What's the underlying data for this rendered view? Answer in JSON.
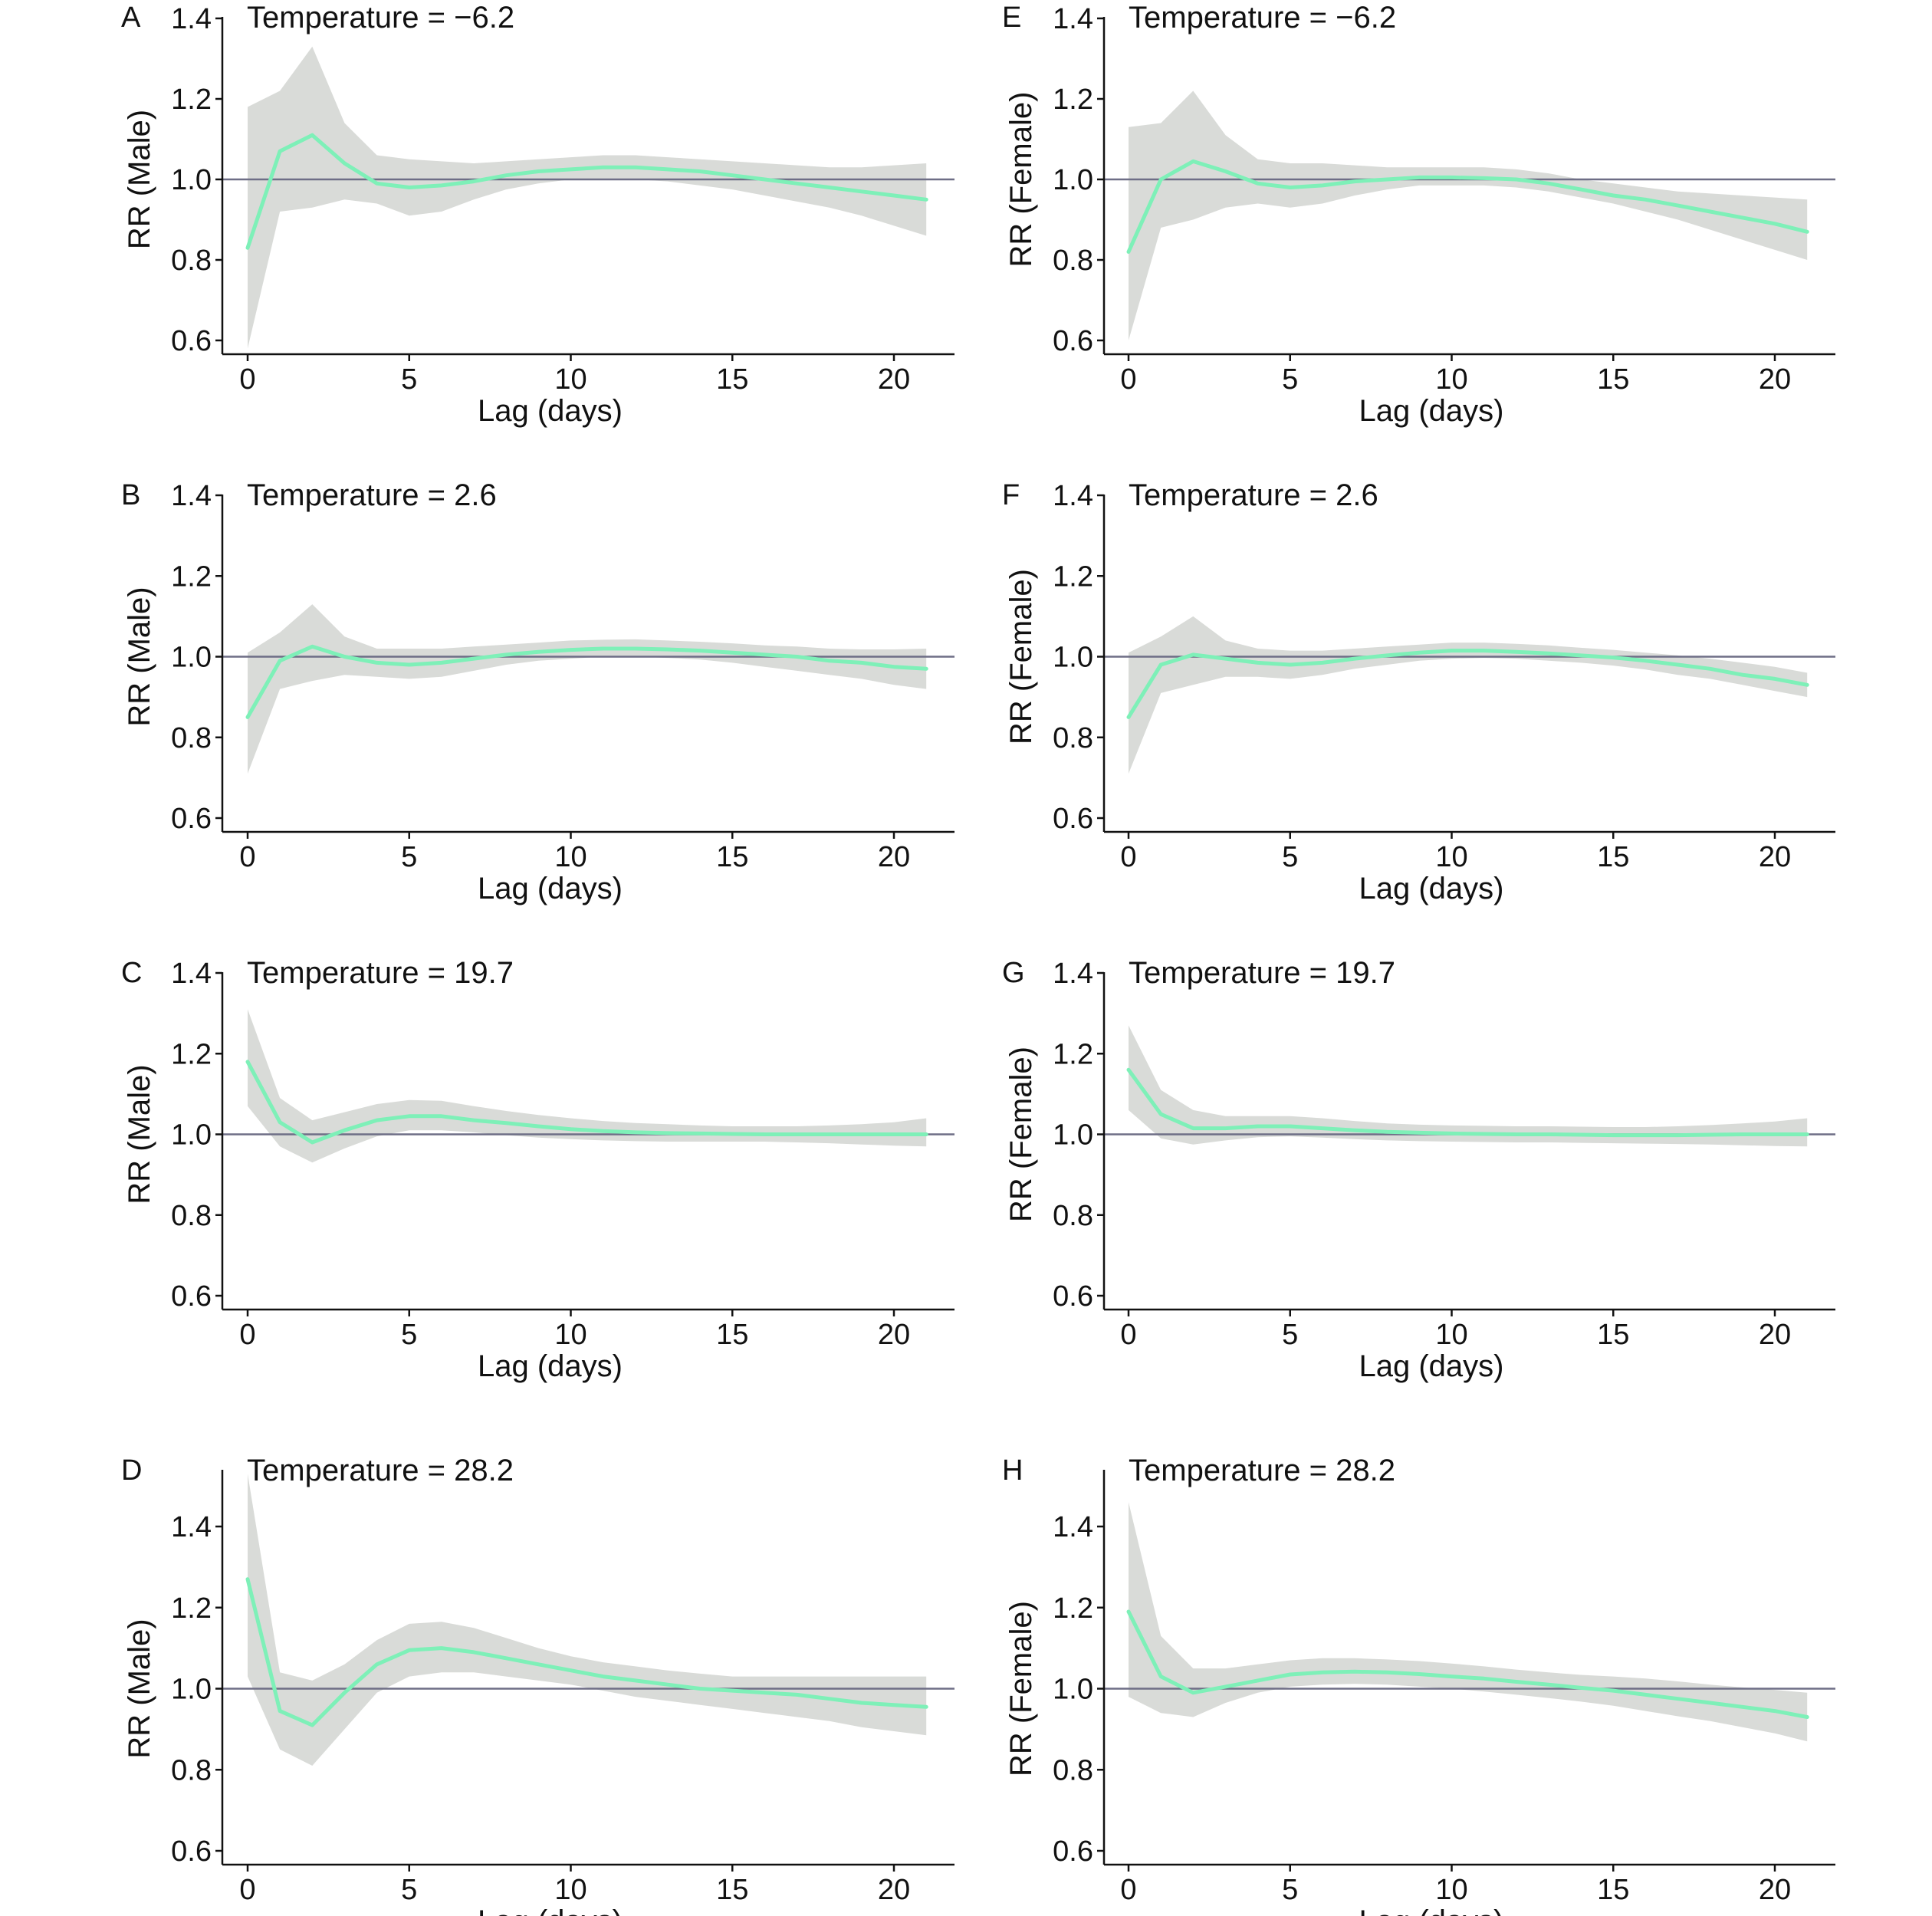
{
  "colors": {
    "line": "#7ef0b8",
    "band": "#d9dbd8",
    "reference": "#6e6e86",
    "axis": "#111111"
  },
  "chart_data": [
    {
      "type": "line",
      "panel": "A",
      "annotation": "Temperature = −6.2",
      "xlabel": "Lag (days)",
      "ylabel": "RR (Male)",
      "xlim": [
        0,
        21
      ],
      "ylim": [
        0.6,
        1.4
      ],
      "xticks": [
        "0",
        "5",
        "10",
        "15",
        "20"
      ],
      "yticks": [
        "0.6",
        "0.8",
        "1.0",
        "1.2",
        "1.4"
      ],
      "reference": 1.0,
      "x": [
        0,
        1,
        2,
        3,
        4,
        5,
        6,
        7,
        8,
        9,
        10,
        11,
        12,
        13,
        14,
        15,
        16,
        17,
        18,
        19,
        20,
        21
      ],
      "y": [
        0.83,
        1.07,
        1.11,
        1.04,
        0.99,
        0.98,
        0.985,
        0.995,
        1.01,
        1.02,
        1.025,
        1.03,
        1.03,
        1.025,
        1.02,
        1.01,
        1.0,
        0.99,
        0.98,
        0.97,
        0.96,
        0.95
      ],
      "lower": [
        0.58,
        0.92,
        0.93,
        0.95,
        0.94,
        0.91,
        0.92,
        0.95,
        0.975,
        0.99,
        1.0,
        1.0,
        1.0,
        0.995,
        0.985,
        0.975,
        0.96,
        0.945,
        0.93,
        0.91,
        0.885,
        0.86
      ],
      "upper": [
        1.18,
        1.22,
        1.33,
        1.14,
        1.06,
        1.05,
        1.045,
        1.04,
        1.045,
        1.05,
        1.055,
        1.06,
        1.06,
        1.055,
        1.05,
        1.045,
        1.04,
        1.035,
        1.03,
        1.03,
        1.035,
        1.04
      ]
    },
    {
      "type": "line",
      "panel": "B",
      "annotation": "Temperature = 2.6",
      "xlabel": "Lag (days)",
      "ylabel": "RR (Male)",
      "xlim": [
        0,
        21
      ],
      "ylim": [
        0.6,
        1.4
      ],
      "xticks": [
        "0",
        "5",
        "10",
        "15",
        "20"
      ],
      "yticks": [
        "0.6",
        "0.8",
        "1.0",
        "1.2",
        "1.4"
      ],
      "reference": 1.0,
      "x": [
        0,
        1,
        2,
        3,
        4,
        5,
        6,
        7,
        8,
        9,
        10,
        11,
        12,
        13,
        14,
        15,
        16,
        17,
        18,
        19,
        20,
        21
      ],
      "y": [
        0.85,
        0.99,
        1.025,
        1.0,
        0.985,
        0.98,
        0.985,
        0.995,
        1.005,
        1.012,
        1.017,
        1.02,
        1.02,
        1.018,
        1.015,
        1.01,
        1.005,
        1.0,
        0.99,
        0.985,
        0.975,
        0.97
      ],
      "lower": [
        0.71,
        0.92,
        0.94,
        0.955,
        0.95,
        0.945,
        0.95,
        0.965,
        0.98,
        0.99,
        0.995,
        1.0,
        1.0,
        0.997,
        0.993,
        0.985,
        0.975,
        0.965,
        0.955,
        0.945,
        0.93,
        0.92
      ],
      "upper": [
        1.01,
        1.06,
        1.13,
        1.05,
        1.02,
        1.02,
        1.02,
        1.025,
        1.03,
        1.035,
        1.04,
        1.042,
        1.043,
        1.04,
        1.037,
        1.033,
        1.028,
        1.025,
        1.02,
        1.018,
        1.018,
        1.02
      ]
    },
    {
      "type": "line",
      "panel": "C",
      "annotation": "Temperature = 19.7",
      "xlabel": "Lag (days)",
      "ylabel": "RR (Male)",
      "xlim": [
        0,
        21
      ],
      "ylim": [
        0.6,
        1.4
      ],
      "xticks": [
        "0",
        "5",
        "10",
        "15",
        "20"
      ],
      "yticks": [
        "0.6",
        "0.8",
        "1.0",
        "1.2",
        "1.4"
      ],
      "reference": 1.0,
      "x": [
        0,
        1,
        2,
        3,
        4,
        5,
        6,
        7,
        8,
        9,
        10,
        11,
        12,
        13,
        14,
        15,
        16,
        17,
        18,
        19,
        20,
        21
      ],
      "y": [
        1.18,
        1.03,
        0.98,
        1.01,
        1.035,
        1.045,
        1.045,
        1.035,
        1.028,
        1.02,
        1.013,
        1.008,
        1.005,
        1.003,
        1.002,
        1.001,
        1.0,
        1.0,
        1.0,
        1.0,
        1.0,
        1.0
      ],
      "lower": [
        1.07,
        0.97,
        0.93,
        0.965,
        0.995,
        1.01,
        1.01,
        1.005,
        0.998,
        0.992,
        0.988,
        0.985,
        0.983,
        0.982,
        0.982,
        0.982,
        0.982,
        0.98,
        0.978,
        0.975,
        0.972,
        0.97
      ],
      "upper": [
        1.31,
        1.09,
        1.035,
        1.055,
        1.075,
        1.085,
        1.083,
        1.07,
        1.058,
        1.048,
        1.04,
        1.033,
        1.028,
        1.025,
        1.022,
        1.02,
        1.02,
        1.02,
        1.022,
        1.025,
        1.03,
        1.04
      ]
    },
    {
      "type": "line",
      "panel": "D",
      "annotation": "Temperature = 28.2",
      "xlabel": "Lag (days)",
      "ylabel": "RR (Male)",
      "xlim": [
        0,
        21
      ],
      "ylim": [
        0.6,
        1.5
      ],
      "xticks": [
        "0",
        "5",
        "10",
        "15",
        "20"
      ],
      "yticks": [
        "0.6",
        "0.8",
        "1.0",
        "1.2",
        "1.4"
      ],
      "reference": 1.0,
      "x": [
        0,
        1,
        2,
        3,
        4,
        5,
        6,
        7,
        8,
        9,
        10,
        11,
        12,
        13,
        14,
        15,
        16,
        17,
        18,
        19,
        20,
        21
      ],
      "y": [
        1.27,
        0.945,
        0.91,
        0.99,
        1.06,
        1.095,
        1.1,
        1.09,
        1.075,
        1.06,
        1.045,
        1.03,
        1.02,
        1.01,
        1.0,
        0.995,
        0.99,
        0.985,
        0.975,
        0.965,
        0.96,
        0.955
      ],
      "lower": [
        1.03,
        0.85,
        0.81,
        0.9,
        0.99,
        1.03,
        1.04,
        1.04,
        1.03,
        1.02,
        1.01,
        0.995,
        0.98,
        0.97,
        0.96,
        0.95,
        0.94,
        0.93,
        0.92,
        0.905,
        0.895,
        0.885
      ],
      "upper": [
        1.53,
        1.04,
        1.02,
        1.06,
        1.12,
        1.16,
        1.165,
        1.15,
        1.125,
        1.1,
        1.08,
        1.065,
        1.055,
        1.045,
        1.037,
        1.03,
        1.03,
        1.03,
        1.03,
        1.03,
        1.03,
        1.03
      ]
    },
    {
      "type": "line",
      "panel": "E",
      "annotation": "Temperature = −6.2",
      "xlabel": "Lag (days)",
      "ylabel": "RR (Female)",
      "xlim": [
        0,
        21
      ],
      "ylim": [
        0.6,
        1.4
      ],
      "xticks": [
        "0",
        "5",
        "10",
        "15",
        "20"
      ],
      "yticks": [
        "0.6",
        "0.8",
        "1.0",
        "1.2",
        "1.4"
      ],
      "reference": 1.0,
      "x": [
        0,
        1,
        2,
        3,
        4,
        5,
        6,
        7,
        8,
        9,
        10,
        11,
        12,
        13,
        14,
        15,
        16,
        17,
        18,
        19,
        20,
        21
      ],
      "y": [
        0.82,
        1.0,
        1.045,
        1.02,
        0.99,
        0.98,
        0.985,
        0.995,
        1.0,
        1.005,
        1.005,
        1.003,
        1.0,
        0.99,
        0.975,
        0.96,
        0.95,
        0.935,
        0.92,
        0.905,
        0.89,
        0.87
      ],
      "lower": [
        0.6,
        0.88,
        0.9,
        0.93,
        0.94,
        0.93,
        0.94,
        0.96,
        0.975,
        0.985,
        0.985,
        0.985,
        0.98,
        0.97,
        0.955,
        0.94,
        0.92,
        0.9,
        0.875,
        0.85,
        0.825,
        0.8
      ],
      "upper": [
        1.13,
        1.14,
        1.22,
        1.11,
        1.05,
        1.04,
        1.04,
        1.035,
        1.03,
        1.03,
        1.03,
        1.03,
        1.025,
        1.015,
        1.0,
        0.99,
        0.98,
        0.97,
        0.965,
        0.96,
        0.955,
        0.95
      ]
    },
    {
      "type": "line",
      "panel": "F",
      "annotation": "Temperature = 2.6",
      "xlabel": "Lag (days)",
      "ylabel": "RR (Female)",
      "xlim": [
        0,
        21
      ],
      "ylim": [
        0.6,
        1.4
      ],
      "xticks": [
        "0",
        "5",
        "10",
        "15",
        "20"
      ],
      "yticks": [
        "0.6",
        "0.8",
        "1.0",
        "1.2",
        "1.4"
      ],
      "reference": 1.0,
      "x": [
        0,
        1,
        2,
        3,
        4,
        5,
        6,
        7,
        8,
        9,
        10,
        11,
        12,
        13,
        14,
        15,
        16,
        17,
        18,
        19,
        20,
        21
      ],
      "y": [
        0.85,
        0.98,
        1.005,
        0.995,
        0.985,
        0.98,
        0.985,
        0.995,
        1.003,
        1.01,
        1.015,
        1.015,
        1.012,
        1.008,
        1.003,
        0.998,
        0.99,
        0.98,
        0.97,
        0.955,
        0.945,
        0.93
      ],
      "lower": [
        0.71,
        0.91,
        0.93,
        0.95,
        0.95,
        0.945,
        0.955,
        0.97,
        0.98,
        0.99,
        0.995,
        0.997,
        0.995,
        0.99,
        0.985,
        0.978,
        0.968,
        0.955,
        0.945,
        0.93,
        0.915,
        0.9
      ],
      "upper": [
        1.01,
        1.05,
        1.1,
        1.04,
        1.02,
        1.015,
        1.015,
        1.02,
        1.025,
        1.03,
        1.035,
        1.035,
        1.032,
        1.028,
        1.022,
        1.017,
        1.01,
        1.003,
        0.995,
        0.985,
        0.975,
        0.96
      ]
    },
    {
      "type": "line",
      "panel": "G",
      "annotation": "Temperature = 19.7",
      "xlabel": "Lag (days)",
      "ylabel": "RR (Female)",
      "xlim": [
        0,
        21
      ],
      "ylim": [
        0.6,
        1.4
      ],
      "xticks": [
        "0",
        "5",
        "10",
        "15",
        "20"
      ],
      "yticks": [
        "0.6",
        "0.8",
        "1.0",
        "1.2",
        "1.4"
      ],
      "reference": 1.0,
      "x": [
        0,
        1,
        2,
        3,
        4,
        5,
        6,
        7,
        8,
        9,
        10,
        11,
        12,
        13,
        14,
        15,
        16,
        17,
        18,
        19,
        20,
        21
      ],
      "y": [
        1.16,
        1.05,
        1.015,
        1.015,
        1.02,
        1.02,
        1.015,
        1.01,
        1.006,
        1.004,
        1.002,
        1.001,
        1.0,
        1.0,
        0.999,
        0.998,
        0.998,
        0.998,
        0.999,
        1.0,
        1.0,
        1.0
      ],
      "lower": [
        1.06,
        0.99,
        0.975,
        0.985,
        0.993,
        0.995,
        0.992,
        0.988,
        0.985,
        0.983,
        0.982,
        0.981,
        0.98,
        0.98,
        0.979,
        0.978,
        0.977,
        0.976,
        0.975,
        0.973,
        0.971,
        0.97
      ],
      "upper": [
        1.27,
        1.11,
        1.06,
        1.045,
        1.045,
        1.045,
        1.04,
        1.033,
        1.027,
        1.024,
        1.022,
        1.021,
        1.02,
        1.02,
        1.019,
        1.018,
        1.018,
        1.02,
        1.023,
        1.027,
        1.032,
        1.04
      ]
    },
    {
      "type": "line",
      "panel": "H",
      "annotation": "Temperature = 28.2",
      "xlabel": "Lag (days)",
      "ylabel": "RR (Female)",
      "xlim": [
        0,
        21
      ],
      "ylim": [
        0.6,
        1.5
      ],
      "xticks": [
        "0",
        "5",
        "10",
        "15",
        "20"
      ],
      "yticks": [
        "0.6",
        "0.8",
        "1.0",
        "1.2",
        "1.4"
      ],
      "reference": 1.0,
      "x": [
        0,
        1,
        2,
        3,
        4,
        5,
        6,
        7,
        8,
        9,
        10,
        11,
        12,
        13,
        14,
        15,
        16,
        17,
        18,
        19,
        20,
        21
      ],
      "y": [
        1.19,
        1.03,
        0.99,
        1.005,
        1.02,
        1.035,
        1.04,
        1.042,
        1.04,
        1.036,
        1.03,
        1.025,
        1.017,
        1.01,
        1.002,
        0.995,
        0.985,
        0.975,
        0.965,
        0.955,
        0.945,
        0.93
      ],
      "lower": [
        0.98,
        0.94,
        0.93,
        0.965,
        0.99,
        1.005,
        1.01,
        1.012,
        1.01,
        1.005,
        1.0,
        0.993,
        0.985,
        0.977,
        0.968,
        0.958,
        0.945,
        0.932,
        0.92,
        0.905,
        0.89,
        0.87
      ],
      "upper": [
        1.46,
        1.13,
        1.05,
        1.05,
        1.06,
        1.07,
        1.075,
        1.075,
        1.072,
        1.068,
        1.062,
        1.055,
        1.047,
        1.04,
        1.034,
        1.03,
        1.025,
        1.018,
        1.01,
        1.003,
        0.997,
        0.99
      ]
    }
  ]
}
